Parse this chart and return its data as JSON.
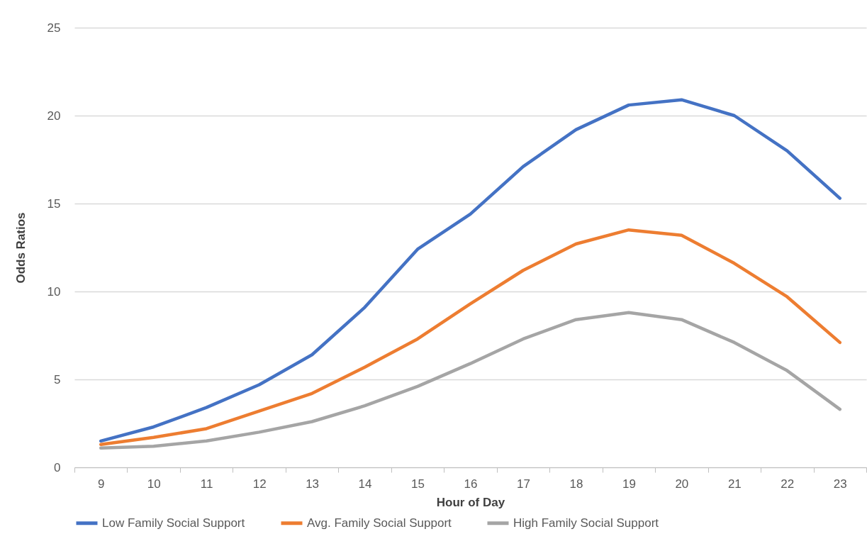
{
  "chart_data": {
    "type": "line",
    "xlabel": "Hour of Day",
    "ylabel": "Odds Ratios",
    "categories": [
      "9",
      "10",
      "11",
      "12",
      "13",
      "14",
      "15",
      "16",
      "17",
      "18",
      "19",
      "20",
      "21",
      "22",
      "23"
    ],
    "series": [
      {
        "name": "Low Family Social Support",
        "color": "#4472c4",
        "values": [
          1.5,
          2.3,
          3.4,
          4.7,
          6.4,
          9.1,
          12.4,
          14.4,
          17.1,
          19.2,
          20.6,
          20.9,
          20.0,
          18.0,
          15.3
        ]
      },
      {
        "name": "Avg. Family Social Support",
        "color": "#ed7d31",
        "values": [
          1.3,
          1.7,
          2.2,
          3.2,
          4.2,
          5.7,
          7.3,
          9.3,
          11.2,
          12.7,
          13.5,
          13.2,
          11.6,
          9.7,
          7.1
        ]
      },
      {
        "name": "High Family Social Support",
        "color": "#a5a5a5",
        "values": [
          1.1,
          1.2,
          1.5,
          2.0,
          2.6,
          3.5,
          4.6,
          5.9,
          7.3,
          8.4,
          8.8,
          8.4,
          7.1,
          5.5,
          3.3
        ]
      }
    ],
    "ylim": [
      0,
      25
    ],
    "yticks": [
      0,
      5,
      10,
      15,
      20,
      25
    ],
    "grid": "y",
    "legend": "bottom",
    "marker": "none",
    "line_style": "solid"
  }
}
